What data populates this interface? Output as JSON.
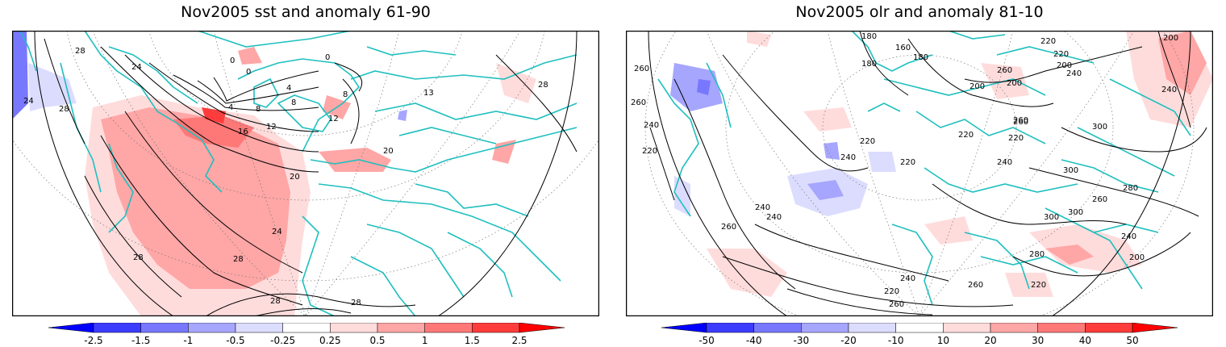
{
  "panels": [
    {
      "title": "Nov2005 sst and anomaly 61-90",
      "contour_labels": [
        "28",
        "24",
        "24",
        "28",
        "0",
        "0",
        "0",
        "4",
        "4",
        "8",
        "8",
        "8",
        "12",
        "12",
        "13",
        "16",
        "20",
        "20",
        "24",
        "28",
        "28",
        "28",
        "28",
        "28"
      ],
      "colorbar": {
        "ticks": [
          "-2.5",
          "-1.5",
          "-1",
          "-0.5",
          "-0.25",
          "0.25",
          "0.5",
          "1",
          "1.5",
          "2.5"
        ],
        "colors": [
          "#0000ff",
          "#3c3cff",
          "#7878ff",
          "#a6a6ff",
          "#dcdcff",
          "#ffffff",
          "#ffdcdc",
          "#ffa6a6",
          "#ff7878",
          "#ff3c3c",
          "#ff0000"
        ]
      }
    },
    {
      "title": "Nov2005 olr and anomaly 81-10",
      "contour_labels": [
        "180",
        "160",
        "180",
        "180",
        "200",
        "200",
        "220",
        "220",
        "200",
        "200",
        "240",
        "260",
        "260",
        "260",
        "240",
        "240",
        "220",
        "220",
        "220",
        "220",
        "240",
        "220",
        "240",
        "260",
        "260",
        "300",
        "300",
        "260",
        "280",
        "300",
        "300",
        "240",
        "240",
        "260",
        "280",
        "240",
        "220",
        "200",
        "220",
        "240",
        "260",
        "260"
      ],
      "colorbar": {
        "ticks": [
          "-50",
          "-40",
          "-30",
          "-20",
          "-10",
          "10",
          "20",
          "30",
          "40",
          "50"
        ],
        "colors": [
          "#0000ff",
          "#3c3cff",
          "#7878ff",
          "#a6a6ff",
          "#dcdcff",
          "#ffffff",
          "#ffdcdc",
          "#ffa6a6",
          "#ff7878",
          "#ff3c3c",
          "#ff0000"
        ]
      }
    }
  ]
}
